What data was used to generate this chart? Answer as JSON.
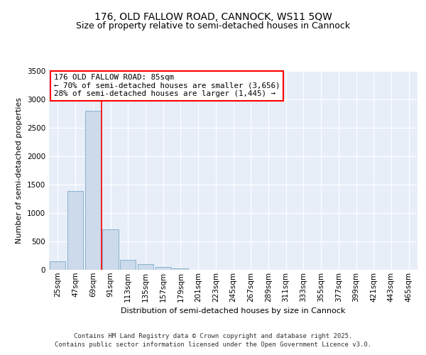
{
  "title": "176, OLD FALLOW ROAD, CANNOCK, WS11 5QW",
  "subtitle": "Size of property relative to semi-detached houses in Cannock",
  "xlabel": "Distribution of semi-detached houses by size in Cannock",
  "ylabel": "Number of semi-detached properties",
  "bins": [
    "25sqm",
    "47sqm",
    "69sqm",
    "91sqm",
    "113sqm",
    "135sqm",
    "157sqm",
    "179sqm",
    "201sqm",
    "223sqm",
    "245sqm",
    "267sqm",
    "289sqm",
    "311sqm",
    "333sqm",
    "355sqm",
    "377sqm",
    "399sqm",
    "421sqm",
    "443sqm",
    "465sqm"
  ],
  "values": [
    150,
    1390,
    2800,
    710,
    175,
    100,
    50,
    30,
    0,
    0,
    0,
    0,
    0,
    0,
    0,
    0,
    0,
    0,
    0,
    0,
    0
  ],
  "bar_color": "#ccdaeb",
  "bar_edge_color": "#7aaac8",
  "background_color": "#e8eef8",
  "red_line_x": 2.5,
  "annotation_line1": "176 OLD FALLOW ROAD: 85sqm",
  "annotation_line2": "← 70% of semi-detached houses are smaller (3,656)",
  "annotation_line3": "28% of semi-detached houses are larger (1,445) →",
  "ylim": [
    0,
    3500
  ],
  "yticks": [
    0,
    500,
    1000,
    1500,
    2000,
    2500,
    3000,
    3500
  ],
  "footer1": "Contains HM Land Registry data © Crown copyright and database right 2025.",
  "footer2": "Contains public sector information licensed under the Open Government Licence v3.0.",
  "title_fontsize": 10,
  "subtitle_fontsize": 9,
  "axis_label_fontsize": 8,
  "tick_fontsize": 7.5,
  "footer_fontsize": 6.5
}
